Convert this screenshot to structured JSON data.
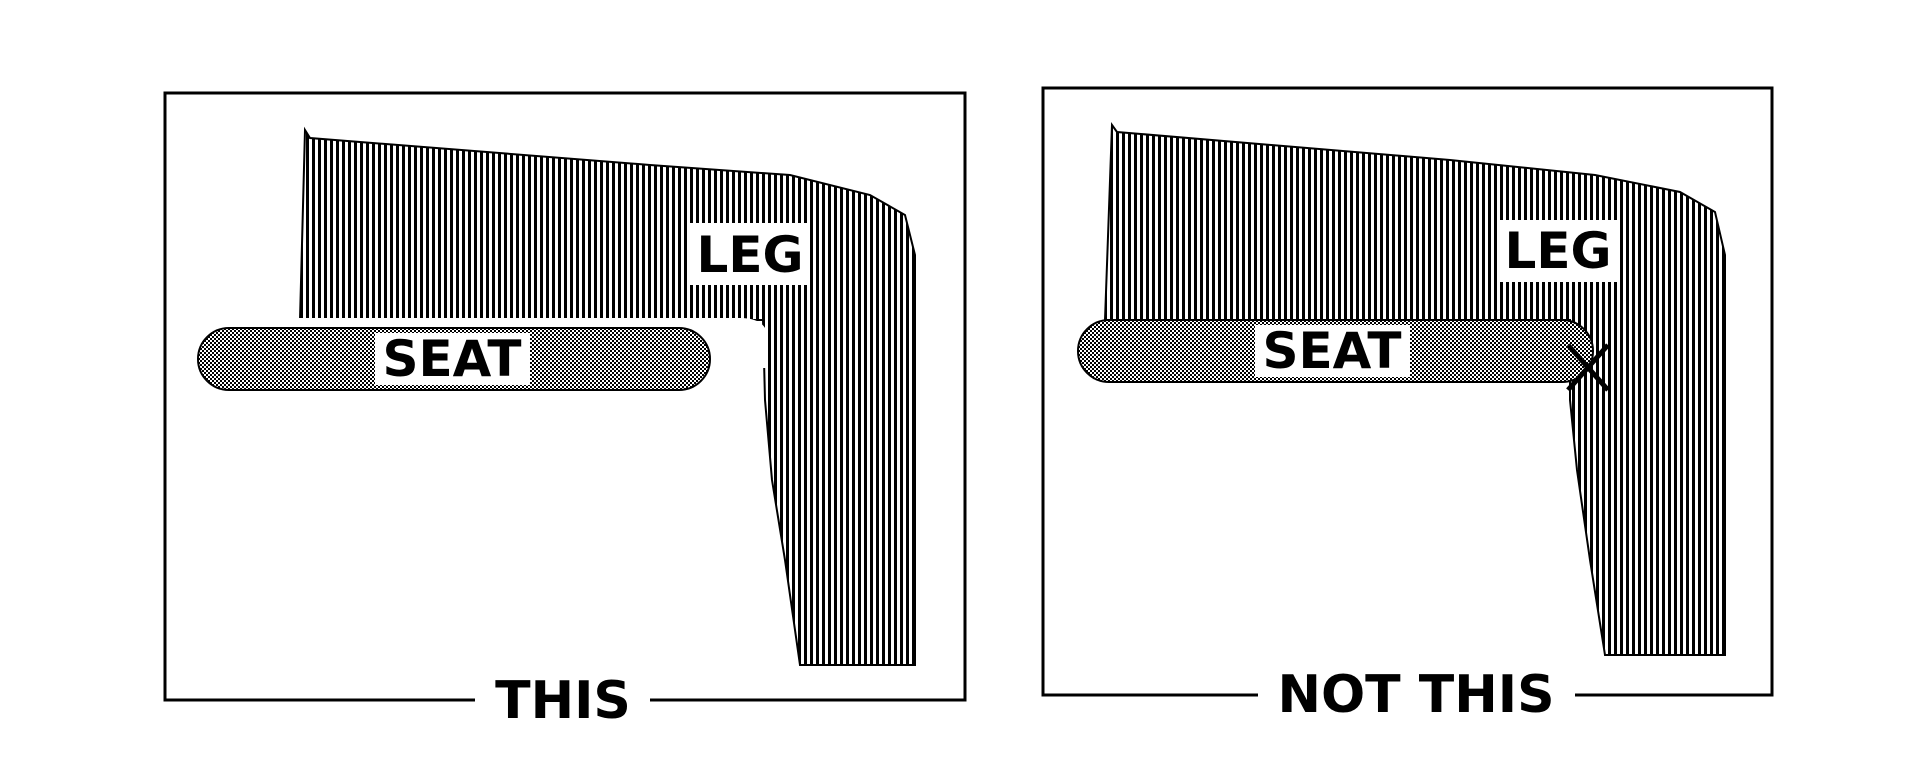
{
  "panels": [
    {
      "caption": "THIS",
      "leg_label": "LEG",
      "seat_label": "SEAT"
    },
    {
      "caption": "NOT THIS",
      "leg_label": "LEG",
      "seat_label": "SEAT"
    }
  ],
  "colors": {
    "ink": "#000000",
    "paper": "#ffffff",
    "seat_fill": "#cfcfcf"
  }
}
